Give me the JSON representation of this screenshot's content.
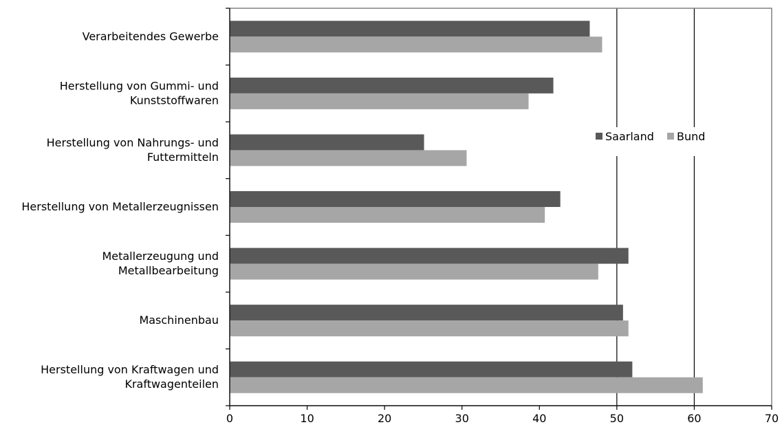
{
  "chart_data": {
    "type": "bar",
    "orientation": "horizontal",
    "categories": [
      [
        "Verarbeitendes Gewerbe"
      ],
      [
        "Herstellung von Gummi- und",
        "Kunststoffwaren"
      ],
      [
        "Herstellung von Nahrungs- und",
        "Futtermitteln"
      ],
      [
        "Herstellung von Metallerzeugnissen"
      ],
      [
        "Metallerzeugung und",
        "Metallbearbeitung"
      ],
      [
        "Maschinenbau"
      ],
      [
        "Herstellung von Kraftwagen und",
        "Kraftwagenteilen"
      ]
    ],
    "series": [
      {
        "name": "Saarland",
        "color": "#595959",
        "values": [
          46.5,
          41.8,
          25.1,
          42.7,
          51.5,
          50.8,
          52.0
        ]
      },
      {
        "name": "Bund",
        "color": "#a6a6a6",
        "values": [
          48.1,
          38.6,
          30.6,
          40.7,
          47.6,
          51.5,
          61.1
        ]
      }
    ],
    "xlim": [
      0,
      70
    ],
    "xticks": [
      0,
      10,
      20,
      30,
      40,
      50,
      60,
      70
    ],
    "gridlines": [
      50,
      60
    ],
    "legend_position": "right"
  }
}
